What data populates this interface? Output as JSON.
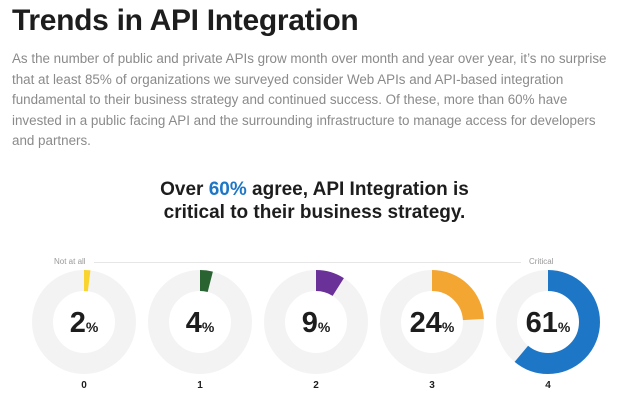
{
  "title": "Trends in API Integration",
  "paragraph_lines": [
    "As the number of public and private APIs grow month over month and year over year, it’s no surprise",
    "that at least 85% of organizations we surveyed consider Web APIs and API-based integration",
    "fundamental to their business strategy and continued success. Of these, more than 60% have",
    "invested in a public facing API and the surrounding infrastructure to manage access for developers",
    "and partners."
  ],
  "headline": {
    "prefix": "Over ",
    "accent": "60%",
    "line1_rest": " agree, API Integration is",
    "line2": "critical to their business strategy."
  },
  "scale": {
    "low_label": "Not at all",
    "high_label": "Critical"
  },
  "colors": {
    "accent": "#1e77c6",
    "track": "#f3f3f3"
  },
  "chart_data": {
    "type": "donut",
    "categories": [
      "0",
      "1",
      "2",
      "3",
      "4"
    ],
    "values": [
      2,
      4,
      9,
      24,
      61
    ],
    "value_suffix": "%",
    "colors": [
      "#f9d42e",
      "#2a6332",
      "#6a3199",
      "#f4a633",
      "#1e77c6"
    ]
  }
}
